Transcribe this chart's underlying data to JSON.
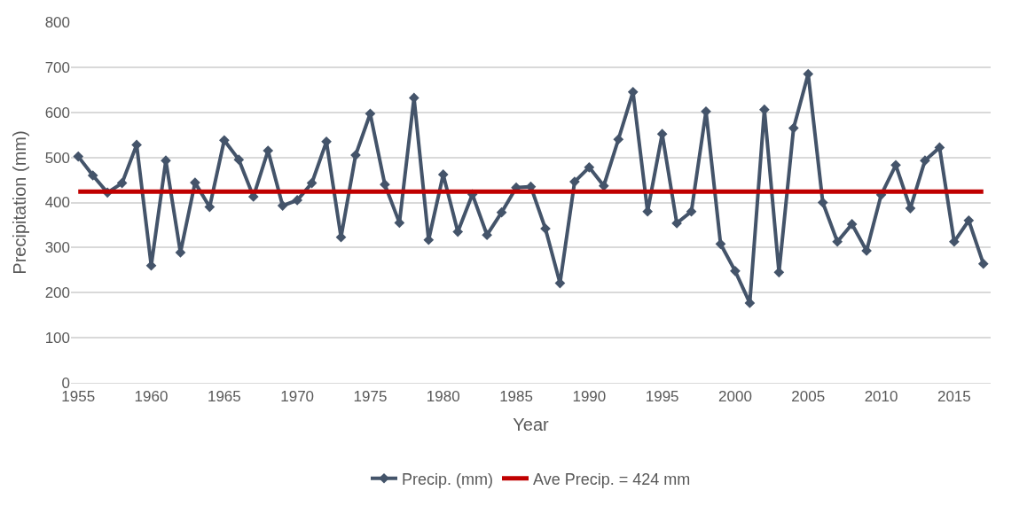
{
  "chart_data": {
    "type": "line",
    "xlabel": "Year",
    "ylabel": "Precipitation (mm)",
    "x": [
      1955,
      1956,
      1957,
      1958,
      1959,
      1960,
      1961,
      1962,
      1963,
      1964,
      1965,
      1966,
      1967,
      1968,
      1969,
      1970,
      1971,
      1972,
      1973,
      1974,
      1975,
      1976,
      1977,
      1978,
      1979,
      1980,
      1981,
      1982,
      1983,
      1984,
      1985,
      1986,
      1987,
      1988,
      1989,
      1990,
      1991,
      1992,
      1993,
      1994,
      1995,
      1996,
      1997,
      1998,
      1999,
      2000,
      2001,
      2002,
      2003,
      2004,
      2005,
      2006,
      2007,
      2008,
      2009,
      2010,
      2011,
      2012,
      2013,
      2014,
      2015,
      2016,
      2017
    ],
    "series": [
      {
        "name": "Precip. (mm)",
        "color": "#44546a",
        "values": [
          502,
          460,
          422,
          443,
          528,
          260,
          493,
          289,
          444,
          390,
          538,
          495,
          413,
          515,
          393,
          405,
          443,
          535,
          323,
          505,
          597,
          440,
          355,
          632,
          317,
          462,
          335,
          418,
          328,
          378,
          433,
          435,
          342,
          221,
          446,
          478,
          437,
          540,
          645,
          380,
          552,
          354,
          380,
          602,
          308,
          248,
          177,
          606,
          245,
          565,
          685,
          400,
          313,
          352,
          293,
          417,
          483,
          387,
          493,
          522,
          313,
          360,
          264
        ]
      }
    ],
    "ref_lines": [
      {
        "axis": "y",
        "value": 424,
        "label": "Ave Precip. = 424 mm",
        "color": "#c00000"
      }
    ],
    "xlim": [
      1954.5,
      2017.5
    ],
    "xticks": [
      1955,
      1960,
      1965,
      1970,
      1975,
      1980,
      1985,
      1990,
      1995,
      2000,
      2005,
      2010,
      2015
    ],
    "ylim": [
      0,
      800
    ],
    "yticks": [
      0,
      100,
      200,
      300,
      400,
      500,
      600,
      700,
      800
    ],
    "grid": "y",
    "legend": "bottom",
    "marker": "diamond",
    "line_style": "solid"
  }
}
